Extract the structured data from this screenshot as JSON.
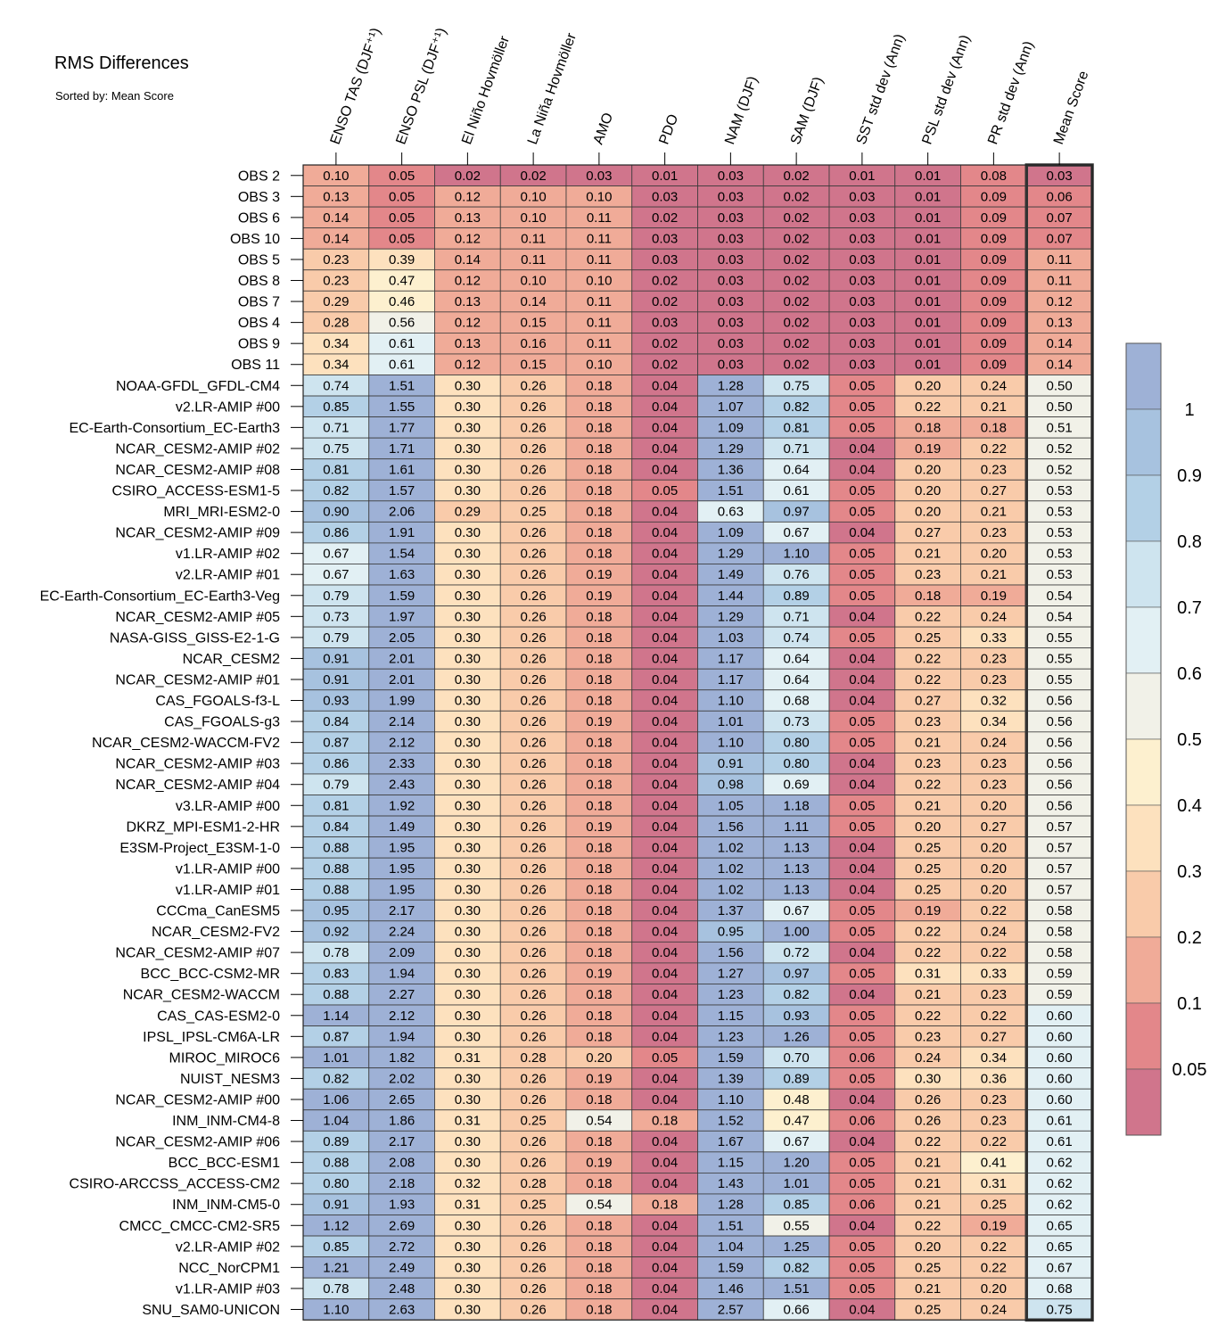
{
  "title": "RMS Differences",
  "subtitle": "Sorted by: Mean Score",
  "chart_data": {
    "type": "heatmap",
    "columns": [
      "ENSO TAS (DJF⁺¹)",
      "ENSO PSL (DJF⁺¹)",
      "El Niño Hovmöller",
      "La Niña Hovmöller",
      "AMO",
      "PDO",
      "NAM (DJF)",
      "SAM (DJF)",
      "SST std dev (Ann)",
      "PSL std dev (Ann)",
      "PR std dev (Ann)",
      "Mean Score"
    ],
    "rows": [
      {
        "name": "OBS 2",
        "values": [
          0.1,
          0.05,
          0.02,
          0.02,
          0.03,
          0.01,
          0.03,
          0.02,
          0.01,
          0.01,
          0.08,
          0.03
        ]
      },
      {
        "name": "OBS 3",
        "values": [
          0.13,
          0.05,
          0.12,
          0.1,
          0.1,
          0.03,
          0.03,
          0.02,
          0.03,
          0.01,
          0.09,
          0.06
        ]
      },
      {
        "name": "OBS 6",
        "values": [
          0.14,
          0.05,
          0.13,
          0.1,
          0.11,
          0.02,
          0.03,
          0.02,
          0.03,
          0.01,
          0.09,
          0.07
        ]
      },
      {
        "name": "OBS 10",
        "values": [
          0.14,
          0.05,
          0.12,
          0.11,
          0.11,
          0.03,
          0.03,
          0.02,
          0.03,
          0.01,
          0.09,
          0.07
        ]
      },
      {
        "name": "OBS 5",
        "values": [
          0.23,
          0.39,
          0.14,
          0.11,
          0.11,
          0.03,
          0.03,
          0.02,
          0.03,
          0.01,
          0.09,
          0.11
        ]
      },
      {
        "name": "OBS 8",
        "values": [
          0.23,
          0.47,
          0.12,
          0.1,
          0.1,
          0.02,
          0.03,
          0.02,
          0.03,
          0.01,
          0.09,
          0.11
        ]
      },
      {
        "name": "OBS 7",
        "values": [
          0.29,
          0.46,
          0.13,
          0.14,
          0.11,
          0.02,
          0.03,
          0.02,
          0.03,
          0.01,
          0.09,
          0.12
        ]
      },
      {
        "name": "OBS 4",
        "values": [
          0.28,
          0.56,
          0.12,
          0.15,
          0.11,
          0.03,
          0.03,
          0.02,
          0.03,
          0.01,
          0.09,
          0.13
        ]
      },
      {
        "name": "OBS 9",
        "values": [
          0.34,
          0.61,
          0.13,
          0.16,
          0.11,
          0.02,
          0.03,
          0.02,
          0.03,
          0.01,
          0.09,
          0.14
        ]
      },
      {
        "name": "OBS 11",
        "values": [
          0.34,
          0.61,
          0.12,
          0.15,
          0.1,
          0.02,
          0.03,
          0.02,
          0.03,
          0.01,
          0.09,
          0.14
        ]
      },
      {
        "name": "NOAA-GFDL_GFDL-CM4",
        "values": [
          0.74,
          1.51,
          0.3,
          0.26,
          0.18,
          0.04,
          1.28,
          0.75,
          0.05,
          0.2,
          0.24,
          0.5
        ]
      },
      {
        "name": "v2.LR-AMIP  #00",
        "values": [
          0.85,
          1.55,
          0.3,
          0.26,
          0.18,
          0.04,
          1.07,
          0.82,
          0.05,
          0.22,
          0.21,
          0.5
        ]
      },
      {
        "name": "EC-Earth-Consortium_EC-Earth3",
        "values": [
          0.71,
          1.77,
          0.3,
          0.26,
          0.18,
          0.04,
          1.09,
          0.81,
          0.05,
          0.18,
          0.18,
          0.51
        ]
      },
      {
        "name": "NCAR_CESM2-AMIP  #02",
        "values": [
          0.75,
          1.71,
          0.3,
          0.26,
          0.18,
          0.04,
          1.29,
          0.71,
          0.04,
          0.19,
          0.22,
          0.52
        ]
      },
      {
        "name": "NCAR_CESM2-AMIP  #08",
        "values": [
          0.81,
          1.61,
          0.3,
          0.26,
          0.18,
          0.04,
          1.36,
          0.64,
          0.04,
          0.2,
          0.23,
          0.52
        ]
      },
      {
        "name": "CSIRO_ACCESS-ESM1-5",
        "values": [
          0.82,
          1.57,
          0.3,
          0.26,
          0.18,
          0.05,
          1.51,
          0.61,
          0.05,
          0.2,
          0.27,
          0.53
        ]
      },
      {
        "name": "MRI_MRI-ESM2-0",
        "values": [
          0.9,
          2.06,
          0.29,
          0.25,
          0.18,
          0.04,
          0.63,
          0.97,
          0.05,
          0.2,
          0.21,
          0.53
        ]
      },
      {
        "name": "NCAR_CESM2-AMIP  #09",
        "values": [
          0.86,
          1.91,
          0.3,
          0.26,
          0.18,
          0.04,
          1.09,
          0.67,
          0.04,
          0.27,
          0.23,
          0.53
        ]
      },
      {
        "name": "v1.LR-AMIP  #02",
        "values": [
          0.67,
          1.54,
          0.3,
          0.26,
          0.18,
          0.04,
          1.29,
          1.1,
          0.05,
          0.21,
          0.2,
          0.53
        ]
      },
      {
        "name": "v2.LR-AMIP  #01",
        "values": [
          0.67,
          1.63,
          0.3,
          0.26,
          0.19,
          0.04,
          1.49,
          0.76,
          0.05,
          0.23,
          0.21,
          0.53
        ]
      },
      {
        "name": "EC-Earth-Consortium_EC-Earth3-Veg",
        "values": [
          0.79,
          1.59,
          0.3,
          0.26,
          0.19,
          0.04,
          1.44,
          0.89,
          0.05,
          0.18,
          0.19,
          0.54
        ]
      },
      {
        "name": "NCAR_CESM2-AMIP  #05",
        "values": [
          0.73,
          1.97,
          0.3,
          0.26,
          0.18,
          0.04,
          1.29,
          0.71,
          0.04,
          0.22,
          0.24,
          0.54
        ]
      },
      {
        "name": "NASA-GISS_GISS-E2-1-G",
        "values": [
          0.79,
          2.05,
          0.3,
          0.26,
          0.18,
          0.04,
          1.03,
          0.74,
          0.05,
          0.25,
          0.33,
          0.55
        ]
      },
      {
        "name": "NCAR_CESM2",
        "values": [
          0.91,
          2.01,
          0.3,
          0.26,
          0.18,
          0.04,
          1.17,
          0.64,
          0.04,
          0.22,
          0.23,
          0.55
        ]
      },
      {
        "name": "NCAR_CESM2-AMIP  #01",
        "values": [
          0.91,
          2.01,
          0.3,
          0.26,
          0.18,
          0.04,
          1.17,
          0.64,
          0.04,
          0.22,
          0.23,
          0.55
        ]
      },
      {
        "name": "CAS_FGOALS-f3-L",
        "values": [
          0.93,
          1.99,
          0.3,
          0.26,
          0.18,
          0.04,
          1.1,
          0.68,
          0.04,
          0.27,
          0.32,
          0.56
        ]
      },
      {
        "name": "CAS_FGOALS-g3",
        "values": [
          0.84,
          2.14,
          0.3,
          0.26,
          0.19,
          0.04,
          1.01,
          0.73,
          0.05,
          0.23,
          0.34,
          0.56
        ]
      },
      {
        "name": "NCAR_CESM2-WACCM-FV2",
        "values": [
          0.87,
          2.12,
          0.3,
          0.26,
          0.18,
          0.04,
          1.1,
          0.8,
          0.05,
          0.21,
          0.24,
          0.56
        ]
      },
      {
        "name": "NCAR_CESM2-AMIP  #03",
        "values": [
          0.86,
          2.33,
          0.3,
          0.26,
          0.18,
          0.04,
          0.91,
          0.8,
          0.04,
          0.23,
          0.23,
          0.56
        ]
      },
      {
        "name": "NCAR_CESM2-AMIP  #04",
        "values": [
          0.79,
          2.43,
          0.3,
          0.26,
          0.18,
          0.04,
          0.98,
          0.69,
          0.04,
          0.22,
          0.23,
          0.56
        ]
      },
      {
        "name": "v3.LR-AMIP  #00",
        "values": [
          0.81,
          1.92,
          0.3,
          0.26,
          0.18,
          0.04,
          1.05,
          1.18,
          0.05,
          0.21,
          0.2,
          0.56
        ]
      },
      {
        "name": "DKRZ_MPI-ESM1-2-HR",
        "values": [
          0.84,
          1.49,
          0.3,
          0.26,
          0.19,
          0.04,
          1.56,
          1.11,
          0.05,
          0.2,
          0.27,
          0.57
        ]
      },
      {
        "name": "E3SM-Project_E3SM-1-0",
        "values": [
          0.88,
          1.95,
          0.3,
          0.26,
          0.18,
          0.04,
          1.02,
          1.13,
          0.04,
          0.25,
          0.2,
          0.57
        ]
      },
      {
        "name": "v1.LR-AMIP  #00",
        "values": [
          0.88,
          1.95,
          0.3,
          0.26,
          0.18,
          0.04,
          1.02,
          1.13,
          0.04,
          0.25,
          0.2,
          0.57
        ]
      },
      {
        "name": "v1.LR-AMIP  #01",
        "values": [
          0.88,
          1.95,
          0.3,
          0.26,
          0.18,
          0.04,
          1.02,
          1.13,
          0.04,
          0.25,
          0.2,
          0.57
        ]
      },
      {
        "name": "CCCma_CanESM5",
        "values": [
          0.95,
          2.17,
          0.3,
          0.26,
          0.18,
          0.04,
          1.37,
          0.67,
          0.05,
          0.19,
          0.22,
          0.58
        ]
      },
      {
        "name": "NCAR_CESM2-FV2",
        "values": [
          0.92,
          2.24,
          0.3,
          0.26,
          0.18,
          0.04,
          0.95,
          1.0,
          0.05,
          0.22,
          0.24,
          0.58
        ]
      },
      {
        "name": "NCAR_CESM2-AMIP  #07",
        "values": [
          0.78,
          2.09,
          0.3,
          0.26,
          0.18,
          0.04,
          1.56,
          0.72,
          0.04,
          0.22,
          0.22,
          0.58
        ]
      },
      {
        "name": "BCC_BCC-CSM2-MR",
        "values": [
          0.83,
          1.94,
          0.3,
          0.26,
          0.19,
          0.04,
          1.27,
          0.97,
          0.05,
          0.31,
          0.33,
          0.59
        ]
      },
      {
        "name": "NCAR_CESM2-WACCM",
        "values": [
          0.88,
          2.27,
          0.3,
          0.26,
          0.18,
          0.04,
          1.23,
          0.82,
          0.04,
          0.21,
          0.23,
          0.59
        ]
      },
      {
        "name": "CAS_CAS-ESM2-0",
        "values": [
          1.14,
          2.12,
          0.3,
          0.26,
          0.18,
          0.04,
          1.15,
          0.93,
          0.05,
          0.22,
          0.22,
          0.6
        ]
      },
      {
        "name": "IPSL_IPSL-CM6A-LR",
        "values": [
          0.87,
          1.94,
          0.3,
          0.26,
          0.18,
          0.04,
          1.23,
          1.26,
          0.05,
          0.23,
          0.27,
          0.6
        ]
      },
      {
        "name": "MIROC_MIROC6",
        "values": [
          1.01,
          1.82,
          0.31,
          0.28,
          0.2,
          0.05,
          1.59,
          0.7,
          0.06,
          0.24,
          0.34,
          0.6
        ]
      },
      {
        "name": "NUIST_NESM3",
        "values": [
          0.82,
          2.02,
          0.3,
          0.26,
          0.19,
          0.04,
          1.39,
          0.89,
          0.05,
          0.3,
          0.36,
          0.6
        ]
      },
      {
        "name": "NCAR_CESM2-AMIP  #00",
        "values": [
          1.06,
          2.65,
          0.3,
          0.26,
          0.18,
          0.04,
          1.1,
          0.48,
          0.04,
          0.26,
          0.23,
          0.6
        ]
      },
      {
        "name": "INM_INM-CM4-8",
        "values": [
          1.04,
          1.86,
          0.31,
          0.25,
          0.54,
          0.18,
          1.52,
          0.47,
          0.06,
          0.26,
          0.23,
          0.61
        ]
      },
      {
        "name": "NCAR_CESM2-AMIP  #06",
        "values": [
          0.89,
          2.17,
          0.3,
          0.26,
          0.18,
          0.04,
          1.67,
          0.67,
          0.04,
          0.22,
          0.22,
          0.61
        ]
      },
      {
        "name": "BCC_BCC-ESM1",
        "values": [
          0.88,
          2.08,
          0.3,
          0.26,
          0.19,
          0.04,
          1.15,
          1.2,
          0.05,
          0.21,
          0.41,
          0.62
        ]
      },
      {
        "name": "CSIRO-ARCCSS_ACCESS-CM2",
        "values": [
          0.8,
          2.18,
          0.32,
          0.28,
          0.18,
          0.04,
          1.43,
          1.01,
          0.05,
          0.21,
          0.31,
          0.62
        ]
      },
      {
        "name": "INM_INM-CM5-0",
        "values": [
          0.91,
          1.93,
          0.31,
          0.25,
          0.54,
          0.18,
          1.28,
          0.85,
          0.06,
          0.21,
          0.25,
          0.62
        ]
      },
      {
        "name": "CMCC_CMCC-CM2-SR5",
        "values": [
          1.12,
          2.69,
          0.3,
          0.26,
          0.18,
          0.04,
          1.51,
          0.55,
          0.04,
          0.22,
          0.19,
          0.65
        ]
      },
      {
        "name": "v2.LR-AMIP  #02",
        "values": [
          0.85,
          2.72,
          0.3,
          0.26,
          0.18,
          0.04,
          1.04,
          1.25,
          0.05,
          0.2,
          0.22,
          0.65
        ]
      },
      {
        "name": "NCC_NorCPM1",
        "values": [
          1.21,
          2.49,
          0.3,
          0.26,
          0.18,
          0.04,
          1.59,
          0.82,
          0.05,
          0.25,
          0.22,
          0.67
        ]
      },
      {
        "name": "v1.LR-AMIP  #03",
        "values": [
          0.78,
          2.48,
          0.3,
          0.26,
          0.18,
          0.04,
          1.46,
          1.51,
          0.05,
          0.21,
          0.2,
          0.68
        ]
      },
      {
        "name": "SNU_SAM0-UNICON",
        "values": [
          1.1,
          2.63,
          0.3,
          0.26,
          0.18,
          0.04,
          2.57,
          0.66,
          0.04,
          0.25,
          0.24,
          0.75
        ]
      }
    ],
    "colorbar": {
      "labels": [
        "1",
        "0.9",
        "0.8",
        "0.7",
        "0.6",
        "0.5",
        "0.4",
        "0.3",
        "0.2",
        "0.1",
        "0.05"
      ],
      "thresholds": [
        0.05,
        0.1,
        0.2,
        0.3,
        0.4,
        0.5,
        0.6,
        0.7,
        0.8,
        0.9,
        1
      ],
      "colors": [
        "#d0758c",
        "#e3878a",
        "#f0ab98",
        "#f9cbaa",
        "#fde1be",
        "#fdf0cf",
        "#f1f1e8",
        "#e2f0f4",
        "#cee4ef",
        "#b3d0e6",
        "#a7c2df",
        "#9eb1d6"
      ]
    },
    "highlight_column": "Mean Score",
    "grid": true
  }
}
